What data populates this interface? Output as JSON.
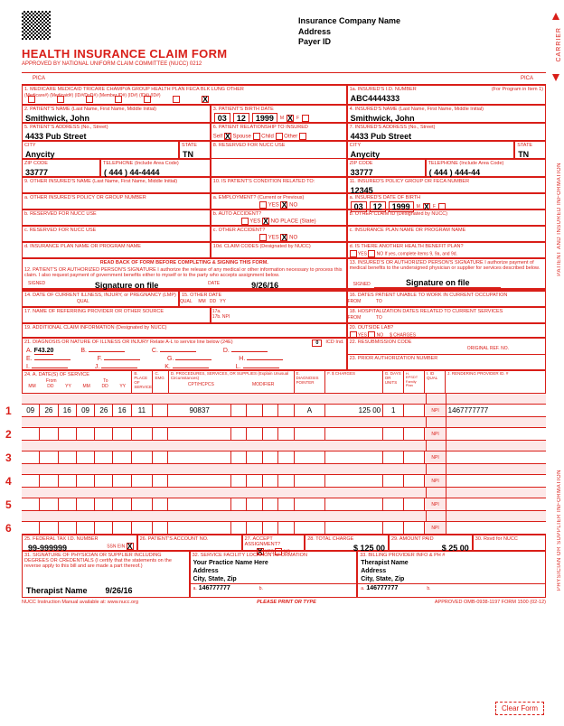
{
  "header": {
    "company": "Insurance Company Name",
    "address": "Address",
    "payerId": "Payer ID",
    "title": "HEALTH INSURANCE CLAIM FORM",
    "approved": "APPROVED BY NATIONAL UNIFORM CLAIM COMMITTEE (NUCC) 0212",
    "pica": "PICA"
  },
  "carrier": "CARRIER",
  "sideLabels": {
    "patient": "PATIENT AND INSURED INFORMATION",
    "physician": "PHYSICIAN OR SUPPLIER INFORMATION"
  },
  "box1": {
    "label": "1. MEDICARE    MEDICAID    TRICARE           CHAMPVA       GROUP HEALTH PLAN    FECA BLK LUNG    OTHER",
    "sublabels": "(Medicare#)   (Medicaid#)   (ID#/DoD#)        (Member ID#)    (ID#)                (ID#)            (ID#)"
  },
  "box1a": {
    "label": "1a. INSURED'S I.D. NUMBER",
    "hint": "(For Program in Item 1)",
    "value": "ABC4444333"
  },
  "box2": {
    "label": "2. PATIENT'S NAME (Last Name, First Name, Middle Initial)",
    "value": "Smithwick, John"
  },
  "box3": {
    "label": "3. PATIENT'S BIRTH DATE",
    "mm": "03",
    "dd": "12",
    "yy": "1999",
    "sex": "M"
  },
  "box4": {
    "label": "4. INSURED'S NAME (Last Name, First Name, Middle Initial)",
    "value": "Smithwick, John"
  },
  "box5": {
    "label": "5. PATIENT'S ADDRESS (No., Street)",
    "street": "4433 Pub Street",
    "city": "Anycity",
    "state": "TN",
    "zip": "33777",
    "phone": "( 444 ) 44-4444",
    "cityLabel": "CITY",
    "stateLabel": "STATE",
    "zipLabel": "ZIP CODE",
    "phoneLabel": "TELEPHONE (Include Area Code)"
  },
  "box6": {
    "label": "6. PATIENT RELATIONSHIP TO INSURED",
    "options": "Self ☒  Spouse ☐  Child ☐  Other ☐"
  },
  "box7": {
    "label": "7. INSURED'S ADDRESS (No., Street)",
    "street": "4433 Pub Street",
    "city": "Anycity",
    "state": "TN",
    "zip": "33777",
    "phone": "( 444 ) 444-44"
  },
  "box8": {
    "label": "8. RESERVED FOR NUCC USE"
  },
  "box9": {
    "label": "9. OTHER INSURED'S NAME (Last Name, First Name, Middle Initial)"
  },
  "box9a": {
    "label": "a. OTHER INSURED'S POLICY OR GROUP NUMBER"
  },
  "box9b": {
    "label": "b. RESERVED FOR NUCC USE"
  },
  "box9c": {
    "label": "c. RESERVED FOR NUCC USE"
  },
  "box9d": {
    "label": "d. INSURANCE PLAN NAME OR PROGRAM NAME"
  },
  "box10": {
    "label": "10. IS PATIENT'S CONDITION RELATED TO:",
    "a": "a. EMPLOYMENT? (Current or Previous)",
    "b": "b. AUTO ACCIDENT?",
    "c": "c. OTHER ACCIDENT?",
    "place": "PLACE (State)"
  },
  "box10d": {
    "label": "10d. CLAIM CODES (Designated by NUCC)"
  },
  "box11": {
    "label": "11. INSURED'S POLICY GROUP OR FECA NUMBER",
    "value": "12345"
  },
  "box11a": {
    "label": "a. INSURED'S DATE OF BIRTH",
    "mm": "03",
    "dd": "12",
    "yy": "1999",
    "sex": "M"
  },
  "box11b": {
    "label": "b. OTHER CLAIM ID (Designated by NUCC)"
  },
  "box11c": {
    "label": "c. INSURANCE PLAN NAME OR PROGRAM NAME"
  },
  "box11d": {
    "label": "d. IS THERE ANOTHER HEALTH BENEFIT PLAN?",
    "hint": "If yes, complete items 9, 9a, and 9d."
  },
  "box12": {
    "heading": "READ BACK OF FORM BEFORE COMPLETING & SIGNING THIS FORM.",
    "label": "12. PATIENT'S OR AUTHORIZED PERSON'S SIGNATURE I authorize the release of any medical or other information necessary to process this claim. I also request payment of government benefits either to myself or to the party who accepts assignment below.",
    "signed": "SIGNED",
    "signature": "Signature on file",
    "dateLabel": "DATE",
    "date": "9/26/16"
  },
  "box13": {
    "label": "13. INSURED'S OR AUTHORIZED PERSON'S SIGNATURE I authorize payment of medical benefits to the undersigned physician or supplier for services described below.",
    "signature": "Signature on file"
  },
  "box14": {
    "label": "14. DATE OF CURRENT ILLNESS, INJURY, or PREGNANCY (LMP)",
    "qual": "QUAL"
  },
  "box15": {
    "label": "15. OTHER DATE",
    "qual": "QUAL"
  },
  "box16": {
    "label": "16. DATES PATIENT UNABLE TO WORK IN CURRENT OCCUPATION",
    "from": "FROM",
    "to": "TO"
  },
  "box17": {
    "label": "17. NAME OF REFERRING PROVIDER OR OTHER SOURCE",
    "a": "17a.",
    "b": "17b. NPI"
  },
  "box18": {
    "label": "18. HOSPITALIZATION DATES RELATED TO CURRENT SERVICES"
  },
  "box19": {
    "label": "19. ADDITIONAL CLAIM INFORMATION (Designated by NUCC)"
  },
  "box20": {
    "label": "20. OUTSIDE LAB?",
    "charges": "$ CHARGES"
  },
  "box21": {
    "label": "21. DIAGNOSIS OR NATURE OF ILLNESS OR INJURY Relate A-L to service line below (24E)",
    "icd": "ICD Ind.",
    "icdVal": "0",
    "a": "F43.20",
    "letters": [
      "A",
      "B",
      "C",
      "D",
      "E",
      "F",
      "G",
      "H",
      "I",
      "J",
      "K",
      "L"
    ]
  },
  "box22": {
    "label": "22. RESUBMISSION CODE",
    "orig": "ORIGINAL REF. NO."
  },
  "box23": {
    "label": "23. PRIOR AUTHORIZATION NUMBER"
  },
  "box24header": {
    "a": "24. A.    DATE(S) OF SERVICE",
    "from": "From",
    "to": "To",
    "b": "B. PLACE OF SERVICE",
    "c": "C. EMG",
    "d": "D. PROCEDURES, SERVICES, OR SUPPLIES (Explain Unusual Circumstances)",
    "cpt": "CPT/HCPCS",
    "mod": "MODIFIER",
    "e": "E. DIAGNOSIS POINTER",
    "f": "F. $ CHARGES",
    "g": "G. DAYS OR UNITS",
    "h": "H. EPSDT Family Plan",
    "i": "I. ID QUAL",
    "j": "J. RENDERING PROVIDER ID. #"
  },
  "serviceLines": [
    {
      "n": "1",
      "fromMM": "09",
      "fromDD": "26",
      "fromYY": "16",
      "toMM": "09",
      "toDD": "26",
      "toYY": "16",
      "place": "11",
      "cpt": "90837",
      "diag": "A",
      "charge": "125 00",
      "units": "1",
      "npi": "NPI",
      "provider": "1467777777"
    },
    {
      "n": "2",
      "npi": "NPI"
    },
    {
      "n": "3",
      "npi": "NPI"
    },
    {
      "n": "4",
      "npi": "NPI"
    },
    {
      "n": "5",
      "npi": "NPI"
    },
    {
      "n": "6",
      "npi": "NPI"
    }
  ],
  "box25": {
    "label": "25. FEDERAL TAX I.D. NUMBER",
    "ssn": "SSN  EIN",
    "value": "99-999999"
  },
  "box26": {
    "label": "26. PATIENT'S ACCOUNT NO."
  },
  "box27": {
    "label": "27. ACCEPT ASSIGNMENT?"
  },
  "box28": {
    "label": "28. TOTAL CHARGE",
    "value": "125 00"
  },
  "box29": {
    "label": "29. AMOUNT PAID",
    "value": "25 00"
  },
  "box30": {
    "label": "30. Rsvd for NUCC"
  },
  "box31": {
    "label": "31. SIGNATURE OF PHYSICIAN OR SUPPLIER INCLUDING DEGREES OR CREDENTIALS (I certify that the statements on the reverse apply to this bill and are made a part thereof.)",
    "name": "Therapist Name",
    "date": "9/26/16"
  },
  "box32": {
    "label": "32. SERVICE FACILITY LOCATION INFORMATION",
    "line1": "Your Practice Name Here",
    "line2": "Address",
    "line3": "City, State, Zip",
    "npi": "146777777"
  },
  "box33": {
    "label": "33. BILLING PROVIDER INFO & PH #",
    "line1": "Therapist Name",
    "line2": "Address",
    "line3": "City, State, Zip",
    "npi": "146777777"
  },
  "footer": {
    "nucc": "NUCC Instruction Manual available at: www.nucc.org",
    "print": "PLEASE PRINT OR TYPE",
    "omb": "APPROVED OMB-0938-1197 FORM 1500 (02-12)",
    "clear": "Clear Form"
  }
}
